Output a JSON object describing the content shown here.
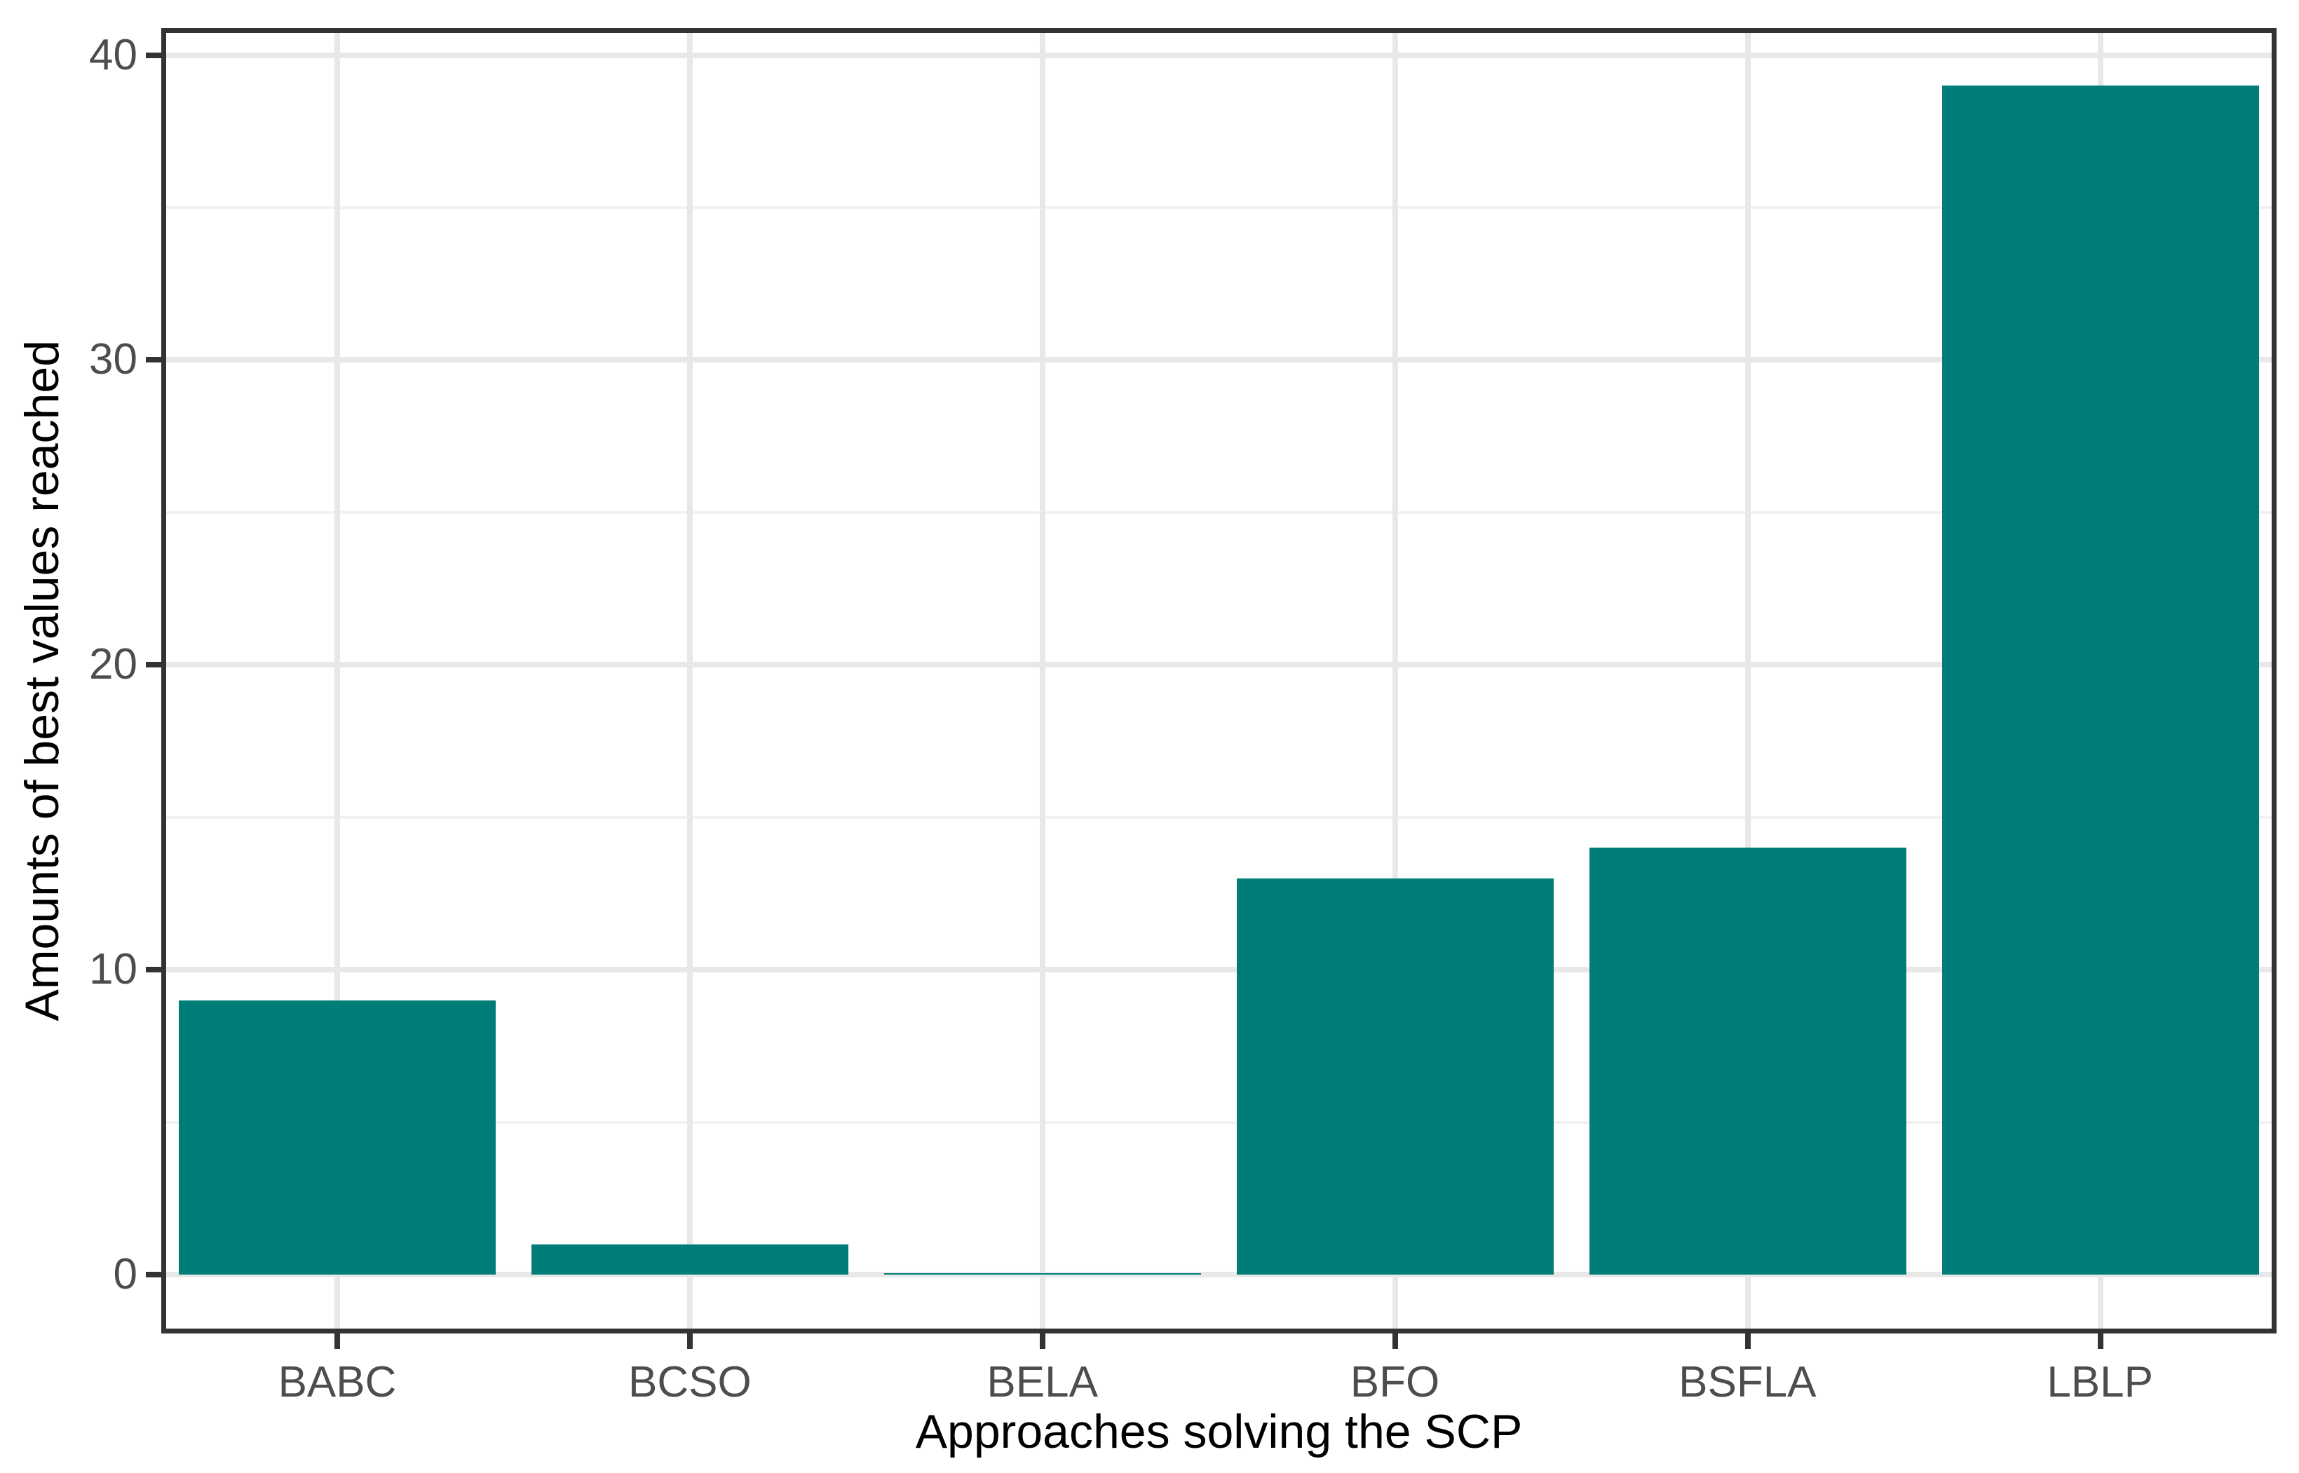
{
  "chart_data": {
    "type": "bar",
    "title": "",
    "categories": [
      "BABC",
      "BCSO",
      "BELA",
      "BFO",
      "BSFLA",
      "LBLP"
    ],
    "values": [
      9,
      1,
      0.05,
      13,
      14,
      39
    ],
    "xlabel": "Approaches solving the SCP",
    "ylabel": "Amounts of best values reached",
    "ylim": [
      0,
      40
    ],
    "yticks": [
      0,
      10,
      20,
      30,
      40
    ],
    "ytick_labels": [
      "0",
      "10",
      "20",
      "30",
      "40"
    ],
    "minor_gridlines": [
      5,
      15,
      25,
      35
    ],
    "grid": "horizontal major+minor, vertical at category centers",
    "legend_position": "none",
    "colors": {
      "bar_fill": "#007d78",
      "axis_line": "#333333",
      "tick_label": "#4d4d4d",
      "axis_title": "#000000",
      "grid_major": "#e8e8e8",
      "grid_minor": "#f2f2f2",
      "panel_background": "#ffffff"
    }
  }
}
